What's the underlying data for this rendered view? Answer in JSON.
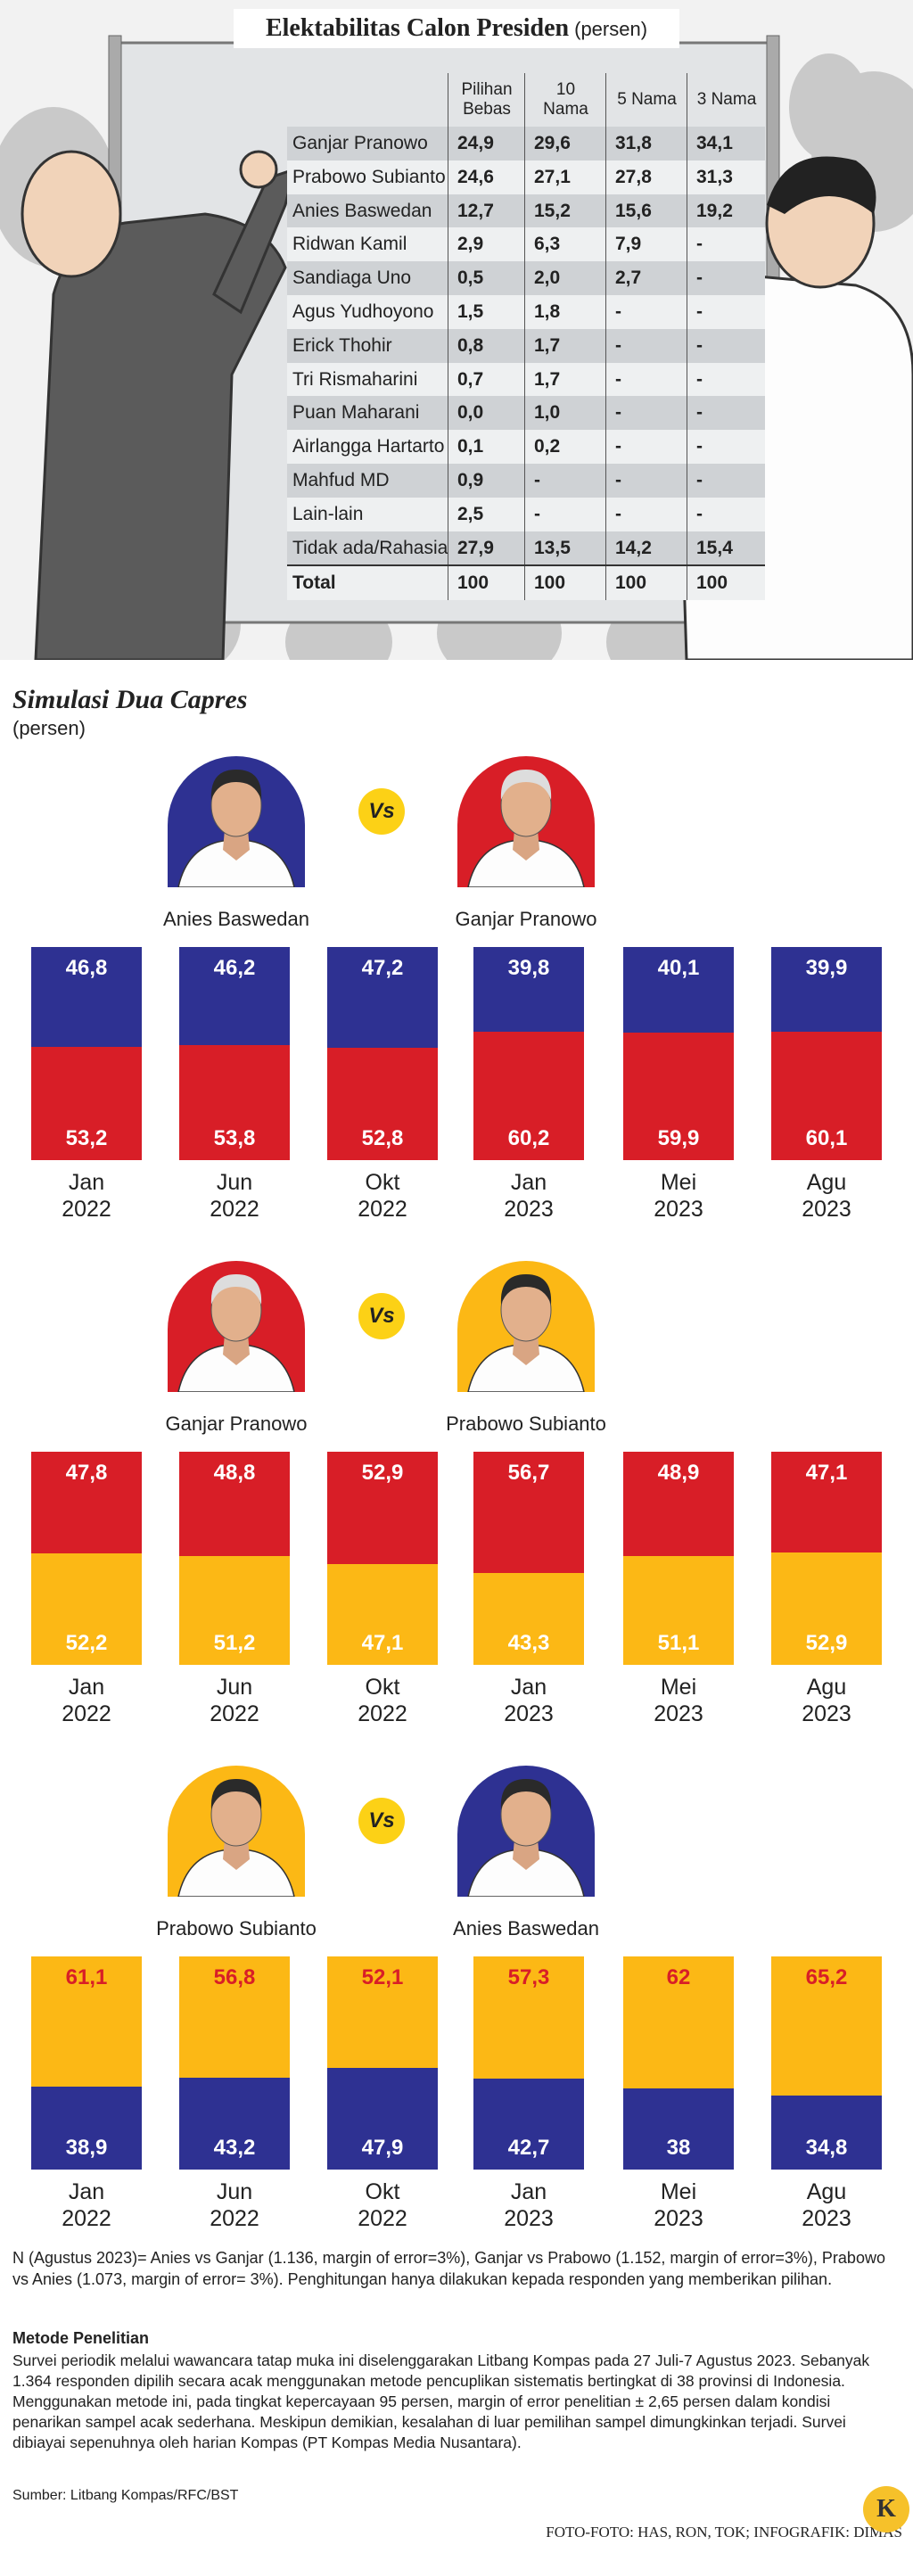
{
  "header": {
    "title": "Elektabilitas Calon Presiden",
    "unit": "(persen)"
  },
  "table": {
    "columns": [
      "Pilihan Bebas",
      "10 Nama",
      "5 Nama",
      "3 Nama"
    ],
    "rows": [
      {
        "name": "Ganjar Pranowo",
        "values": [
          "24,9",
          "29,6",
          "31,8",
          "34,1"
        ]
      },
      {
        "name": "Prabowo Subianto",
        "values": [
          "24,6",
          "27,1",
          "27,8",
          "31,3"
        ]
      },
      {
        "name": "Anies Baswedan",
        "values": [
          "12,7",
          "15,2",
          "15,6",
          "19,2"
        ]
      },
      {
        "name": "Ridwan Kamil",
        "values": [
          "2,9",
          "6,3",
          "7,9",
          "-"
        ]
      },
      {
        "name": "Sandiaga Uno",
        "values": [
          "0,5",
          "2,0",
          "2,7",
          "-"
        ]
      },
      {
        "name": "Agus Yudhoyono",
        "values": [
          "1,5",
          "1,8",
          "-",
          "-"
        ]
      },
      {
        "name": "Erick Thohir",
        "values": [
          "0,8",
          "1,7",
          "-",
          "-"
        ]
      },
      {
        "name": "Tri Rismaharini",
        "values": [
          "0,7",
          "1,7",
          "-",
          "-"
        ]
      },
      {
        "name": "Puan Maharani",
        "values": [
          "0,0",
          "1,0",
          "-",
          "-"
        ]
      },
      {
        "name": "Airlangga Hartarto",
        "values": [
          "0,1",
          "0,2",
          "-",
          "-"
        ]
      },
      {
        "name": "Mahfud MD",
        "values": [
          "0,9",
          "-",
          "-",
          "-"
        ]
      },
      {
        "name": "Lain-lain",
        "values": [
          "2,5",
          "-",
          "-",
          "-"
        ]
      },
      {
        "name": "Tidak ada/Rahasia",
        "values": [
          "27,9",
          "13,5",
          "14,2",
          "15,4"
        ]
      },
      {
        "name": "Total",
        "values": [
          "100",
          "100",
          "100",
          "100"
        ]
      }
    ]
  },
  "section": {
    "title": "Simulasi Dua Capres",
    "unit": "(persen)"
  },
  "chart_data": [
    {
      "type": "stacked_bar",
      "annotation": "Vs",
      "ylim": [
        0,
        100
      ],
      "categories": [
        "Jan 2022",
        "Jun 2022",
        "Okt 2022",
        "Jan 2023",
        "Mei 2023",
        "Agu 2023"
      ],
      "series": [
        {
          "name": "Anies Baswedan",
          "color": "#2e3192",
          "values": [
            46.8,
            46.2,
            47.2,
            39.8,
            40.1,
            39.9
          ],
          "value_labels": [
            "46,8",
            "46,2",
            "47,2",
            "39,8",
            "40,1",
            "39,9"
          ]
        },
        {
          "name": "Ganjar Pranowo",
          "color": "#d81e27",
          "values": [
            53.2,
            53.8,
            52.8,
            60.2,
            59.9,
            60.1
          ],
          "value_labels": [
            "53,2",
            "53,8",
            "52,8",
            "60,2",
            "59,9",
            "60,1"
          ]
        }
      ]
    },
    {
      "type": "stacked_bar",
      "annotation": "Vs",
      "ylim": [
        0,
        100
      ],
      "categories": [
        "Jan 2022",
        "Jun 2022",
        "Okt 2022",
        "Jan 2023",
        "Mei 2023",
        "Agu 2023"
      ],
      "series": [
        {
          "name": "Ganjar Pranowo",
          "color": "#d81e27",
          "values": [
            47.8,
            48.8,
            52.9,
            56.7,
            48.9,
            47.1
          ],
          "value_labels": [
            "47,8",
            "48,8",
            "52,9",
            "56,7",
            "48,9",
            "47,1"
          ]
        },
        {
          "name": "Prabowo Subianto",
          "color": "#fcb815",
          "values": [
            52.2,
            51.2,
            47.1,
            43.3,
            51.1,
            52.9
          ],
          "value_labels": [
            "52,2",
            "51,2",
            "47,1",
            "43,3",
            "51,1",
            "52,9"
          ]
        }
      ]
    },
    {
      "type": "stacked_bar",
      "annotation": "Vs",
      "ylim": [
        0,
        100
      ],
      "categories": [
        "Jan 2022",
        "Jun 2022",
        "Okt 2022",
        "Jan 2023",
        "Mei 2023",
        "Agu 2023"
      ],
      "series": [
        {
          "name": "Prabowo Subianto",
          "color": "#fcb815",
          "values": [
            61.1,
            56.8,
            52.1,
            57.3,
            62,
            65.2
          ],
          "value_labels": [
            "61,1",
            "56,8",
            "52,1",
            "57,3",
            "62",
            "65,2"
          ]
        },
        {
          "name": "Anies Baswedan",
          "color": "#2e3192",
          "values": [
            38.9,
            43.2,
            47.9,
            42.7,
            38,
            34.8
          ],
          "value_labels": [
            "38,9",
            "43,2",
            "47,9",
            "42,7",
            "38",
            "34,8"
          ]
        }
      ]
    }
  ],
  "notes": {
    "sample": "N (Agustus 2023)= Anies vs Ganjar (1.136, margin of error=3%), Ganjar vs Prabowo (1.152, margin of error=3%), Prabowo vs Anies (1.073, margin of error= 3%). Penghitungan hanya dilakukan kepada responden yang memberikan pilihan.",
    "method_title": "Metode Penelitian",
    "method": "Survei periodik melalui wawancara tatap muka ini diselenggarakan Litbang Kompas pada 27 Juli-7 Agustus 2023. Sebanyak 1.364 responden dipilih secara acak  menggunakan metode pencuplikan sistematis bertingkat di 38 provinsi di Indonesia. Menggunakan metode ini, pada tingkat kepercayaan 95 persen, margin of error  penelitian ± 2,65 persen dalam kondisi penarikan sampel acak sederhana. Meskipun demikian, kesalahan di luar pemilihan sampel dimungkinkan terjadi. Survei dibiayai sepenuhnya oleh harian Kompas (PT Kompas Media Nusantara).",
    "source": "Sumber: Litbang Kompas/RFC/BST",
    "credit": "FOTO-FOTO: HAS, RON, TOK; INFOGRAFIK: DIMAS",
    "logo": "K"
  }
}
